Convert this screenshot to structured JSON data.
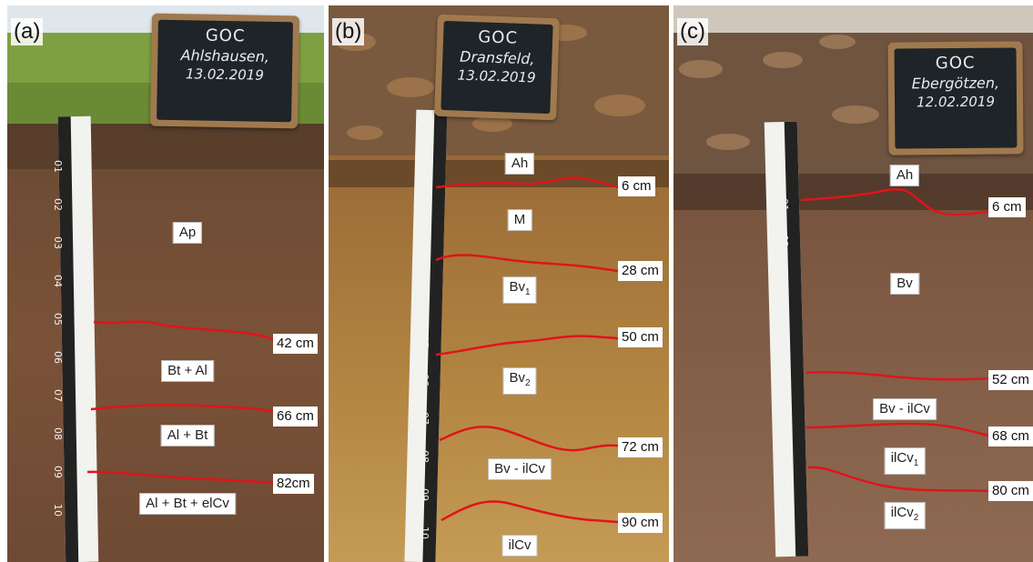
{
  "panels": [
    {
      "label": "(a)",
      "sign": {
        "line1": "GOC",
        "line2": "Ahlshausen,",
        "line3": "13.02.2019"
      },
      "horizons": [
        {
          "main": "Ap",
          "sub": ""
        },
        {
          "main": "Bt + Al",
          "sub": ""
        },
        {
          "main": "Al + Bt",
          "sub": ""
        },
        {
          "main": "Al + Bt + elCv",
          "sub": ""
        }
      ],
      "depths": [
        "42 cm",
        "66 cm",
        "82cm"
      ]
    },
    {
      "label": "(b)",
      "sign": {
        "line1": "GOC",
        "line2": "Dransfeld,",
        "line3": "13.02.2019"
      },
      "horizons": [
        {
          "main": "Ah",
          "sub": ""
        },
        {
          "main": "M",
          "sub": ""
        },
        {
          "main": "Bv",
          "sub": "1"
        },
        {
          "main": "Bv",
          "sub": "2"
        },
        {
          "main": "Bv - ilCv",
          "sub": ""
        },
        {
          "main": "ilCv",
          "sub": ""
        }
      ],
      "depths": [
        "6 cm",
        "28 cm",
        "50 cm",
        "72 cm",
        "90 cm"
      ]
    },
    {
      "label": "(c)",
      "sign": {
        "line1": "GOC",
        "line2": "Ebergötzen,",
        "line3": "12.02.2019"
      },
      "horizons": [
        {
          "main": "Ah",
          "sub": ""
        },
        {
          "main": "Bv",
          "sub": ""
        },
        {
          "main": "Bv - ilCv",
          "sub": ""
        },
        {
          "main": "ilCv",
          "sub": "1"
        },
        {
          "main": "ilCv",
          "sub": "2"
        }
      ],
      "depths": [
        "6 cm",
        "52 cm",
        "68 cm",
        "80 cm"
      ]
    }
  ],
  "ruler_marks": [
    "01",
    "02",
    "03",
    "04",
    "05",
    "06",
    "07",
    "08",
    "09",
    "10"
  ],
  "colors": {
    "boundary": "#e0141a"
  }
}
